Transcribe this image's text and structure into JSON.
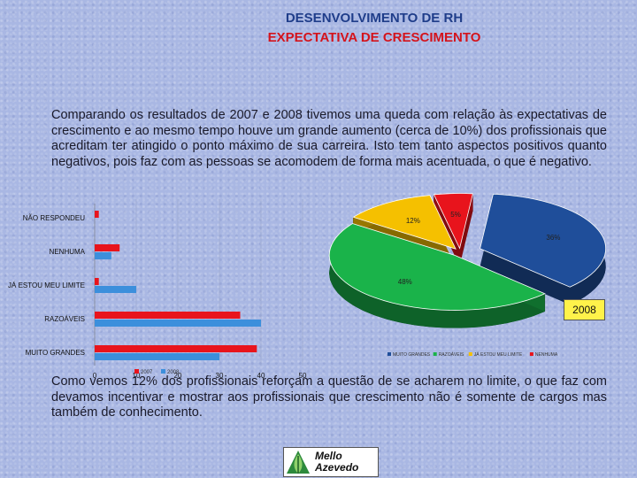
{
  "header": {
    "title": "DESENVOLVIMENTO DE RH",
    "subtitle": "EXPECTATIVA DE CRESCIMENTO"
  },
  "paragraphs": {
    "top": "Comparando os resultados de 2007 e 2008 tivemos uma queda com relação às expectativas de crescimento e ao mesmo tempo houve um grande aumento (cerca de 10%) dos profissionais que acreditam ter atingido o ponto máximo de sua carreira. Isto tem tanto aspectos positivos quanto negativos, pois faz com as pessoas se acomodem de forma mais acentuada, o que é negativo.",
    "bottom": "Como vemos 12% dos profissionais reforçam a questão de se acharem no limite, o que faz com devamos incentivar e mostrar aos profissionais que crescimento não é somente de cargos mas também de conhecimento."
  },
  "year_badge": "2008",
  "logo_text": [
    "Mello",
    "Azevedo"
  ],
  "colors": {
    "red": "#e8141c",
    "blue": "#3c8fdc",
    "yellow": "#f5c000",
    "green": "#1ab34a",
    "navy": "#1f4e9a"
  },
  "chart_data": [
    {
      "type": "bar",
      "orientation": "horizontal",
      "categories": [
        "NÃO RESPONDEU",
        "NENHUMA",
        "JÁ ESTOU MEU LIMITE",
        "RAZOÁVEIS",
        "MUITO GRANDES"
      ],
      "series": [
        {
          "name": "2007",
          "values": [
            1,
            6,
            1,
            35,
            39
          ]
        },
        {
          "name": "2008",
          "values": [
            0,
            4,
            10,
            40,
            30
          ]
        }
      ],
      "xticks": [
        0,
        10,
        20,
        30,
        40,
        50
      ],
      "xlim": [
        0,
        50
      ],
      "legend_position": "bottom"
    },
    {
      "type": "pie",
      "style": "3d-exploded",
      "labels": [
        "MUITO GRANDES",
        "RAZOÁVEIS",
        "JÁ ESTOU MEU LIMITE",
        "NENHUMA"
      ],
      "values": [
        36,
        48,
        12,
        5
      ],
      "value_labels": [
        "36%",
        "48%",
        "12%",
        "5%"
      ],
      "legend_position": "bottom"
    }
  ]
}
